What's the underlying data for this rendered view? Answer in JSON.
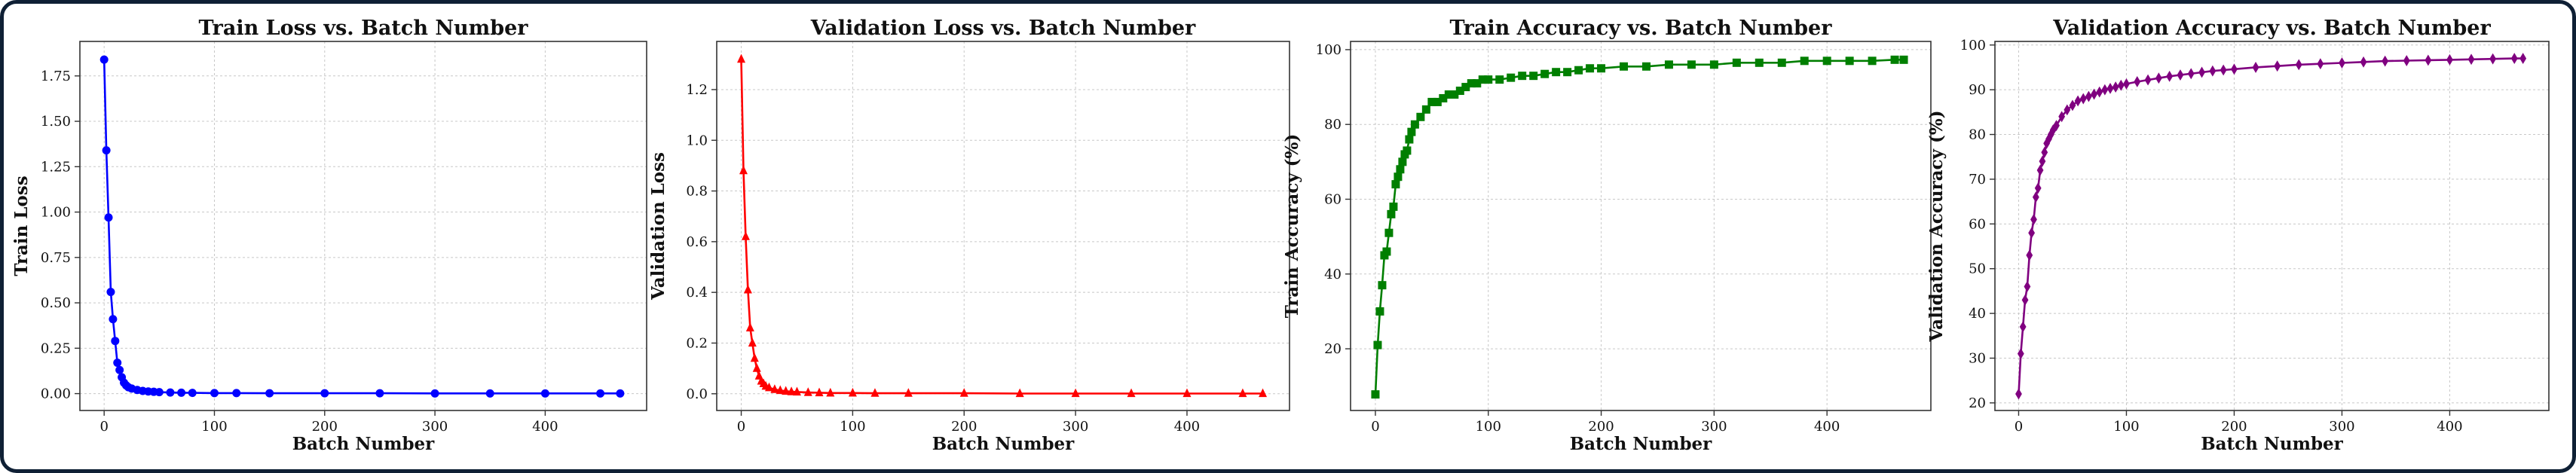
{
  "chart_data": [
    {
      "type": "line",
      "title": "Train Loss vs. Batch Number",
      "xlabel": "Batch Number",
      "ylabel": "Train Loss",
      "xlim": [
        -22,
        492
      ],
      "ylim": [
        -0.093,
        1.94
      ],
      "xticks": [
        0,
        100,
        200,
        300,
        400
      ],
      "yticks": [
        0.0,
        0.25,
        0.5,
        0.75,
        1.0,
        1.25,
        1.5,
        1.75
      ],
      "ytick_labels": [
        "0.00",
        "0.25",
        "0.50",
        "0.75",
        "1.00",
        "1.25",
        "1.50",
        "1.75"
      ],
      "grid": true,
      "color": "#0000ff",
      "marker": "circle",
      "series": [
        {
          "x": [
            0,
            2,
            4,
            6,
            8,
            10,
            12,
            14,
            16,
            18,
            20,
            22,
            25,
            30,
            35,
            40,
            45,
            50,
            60,
            70,
            80,
            100,
            120,
            150,
            200,
            250,
            300,
            350,
            400,
            450,
            468
          ],
          "y": [
            1.84,
            1.34,
            0.97,
            0.56,
            0.41,
            0.29,
            0.17,
            0.13,
            0.09,
            0.06,
            0.045,
            0.035,
            0.028,
            0.02,
            0.015,
            0.012,
            0.01,
            0.008,
            0.006,
            0.005,
            0.004,
            0.003,
            0.003,
            0.002,
            0.002,
            0.002,
            0.001,
            0.001,
            0.001,
            0.001,
            0.001
          ]
        }
      ]
    },
    {
      "type": "line",
      "title": "Validation Loss vs. Batch Number",
      "xlabel": "Batch Number",
      "ylabel": "Validation Loss",
      "xlim": [
        -22,
        492
      ],
      "ylim": [
        -0.066,
        1.39
      ],
      "xticks": [
        0,
        100,
        200,
        300,
        400
      ],
      "yticks": [
        0.0,
        0.2,
        0.4,
        0.6,
        0.8,
        1.0,
        1.2
      ],
      "ytick_labels": [
        "0.0",
        "0.2",
        "0.4",
        "0.6",
        "0.8",
        "1.0",
        "1.2"
      ],
      "grid": true,
      "color": "#ff0000",
      "marker": "triangle",
      "series": [
        {
          "x": [
            0,
            2,
            4,
            6,
            8,
            10,
            12,
            14,
            16,
            18,
            20,
            22,
            25,
            30,
            35,
            40,
            45,
            50,
            60,
            70,
            80,
            100,
            120,
            150,
            200,
            250,
            300,
            350,
            400,
            450,
            468
          ],
          "y": [
            1.32,
            0.88,
            0.62,
            0.41,
            0.26,
            0.2,
            0.14,
            0.1,
            0.07,
            0.05,
            0.04,
            0.03,
            0.024,
            0.017,
            0.013,
            0.01,
            0.008,
            0.007,
            0.005,
            0.004,
            0.003,
            0.003,
            0.002,
            0.002,
            0.002,
            0.001,
            0.001,
            0.001,
            0.001,
            0.001,
            0.001
          ]
        }
      ]
    },
    {
      "type": "line",
      "title": "Train Accuracy vs. Batch Number",
      "xlabel": "Batch Number",
      "ylabel": "Train Accuracy (%)",
      "xlim": [
        -22,
        492
      ],
      "ylim": [
        3.5,
        102.2
      ],
      "xticks": [
        0,
        100,
        200,
        300,
        400
      ],
      "yticks": [
        20,
        40,
        60,
        80,
        100
      ],
      "ytick_labels": [
        "20",
        "40",
        "60",
        "80",
        "100"
      ],
      "grid": true,
      "color": "#007f00",
      "marker": "square",
      "series": [
        {
          "x": [
            0,
            2,
            4,
            6,
            8,
            10,
            12,
            14,
            16,
            18,
            20,
            22,
            24,
            26,
            28,
            30,
            32,
            35,
            40,
            45,
            50,
            55,
            60,
            65,
            70,
            75,
            80,
            85,
            90,
            95,
            100,
            110,
            120,
            130,
            140,
            150,
            160,
            170,
            180,
            190,
            200,
            220,
            240,
            260,
            280,
            300,
            320,
            340,
            360,
            380,
            400,
            420,
            440,
            460,
            468
          ],
          "y": [
            7.8,
            21,
            30,
            37,
            45,
            46,
            51,
            56,
            58,
            64,
            66,
            68,
            70,
            72,
            73,
            76,
            78,
            80,
            82,
            84,
            86,
            86,
            87,
            88,
            88,
            89,
            90,
            91,
            91,
            92,
            92,
            92,
            92.5,
            93,
            93,
            93.5,
            94,
            94,
            94.5,
            95,
            95,
            95.5,
            95.5,
            96,
            96,
            96,
            96.5,
            96.5,
            96.5,
            97,
            97,
            97,
            97,
            97.3,
            97.3
          ]
        }
      ]
    },
    {
      "type": "line",
      "title": "Validation Accuracy vs. Batch Number",
      "xlabel": "Batch Number",
      "ylabel": "Validation Accuracy (%)",
      "xlim": [
        -22,
        492
      ],
      "ylim": [
        18.3,
        100.8
      ],
      "xticks": [
        0,
        100,
        200,
        300,
        400
      ],
      "yticks": [
        20,
        30,
        40,
        50,
        60,
        70,
        80,
        90,
        100
      ],
      "ytick_labels": [
        "20",
        "30",
        "40",
        "50",
        "60",
        "70",
        "80",
        "90",
        "100"
      ],
      "grid": true,
      "color": "#800080",
      "marker": "diamond",
      "series": [
        {
          "x": [
            0,
            2,
            4,
            6,
            8,
            10,
            12,
            14,
            16,
            18,
            20,
            22,
            24,
            26,
            28,
            30,
            32,
            35,
            40,
            45,
            50,
            55,
            60,
            65,
            70,
            75,
            80,
            85,
            90,
            95,
            100,
            110,
            120,
            130,
            140,
            150,
            160,
            170,
            180,
            190,
            200,
            220,
            240,
            260,
            280,
            300,
            320,
            340,
            360,
            380,
            400,
            420,
            440,
            460,
            468
          ],
          "y": [
            22,
            31,
            37,
            43,
            46,
            53,
            58,
            61,
            66,
            68,
            72,
            74,
            76,
            78,
            79,
            80,
            81,
            82,
            84,
            85.5,
            86.5,
            87.5,
            88,
            88.5,
            89,
            89.5,
            90,
            90.3,
            90.6,
            91,
            91.3,
            91.8,
            92.2,
            92.6,
            93,
            93.3,
            93.6,
            93.9,
            94.2,
            94.4,
            94.6,
            95,
            95.3,
            95.6,
            95.8,
            96,
            96.2,
            96.4,
            96.5,
            96.6,
            96.7,
            96.8,
            96.9,
            97,
            97
          ]
        }
      ]
    }
  ]
}
